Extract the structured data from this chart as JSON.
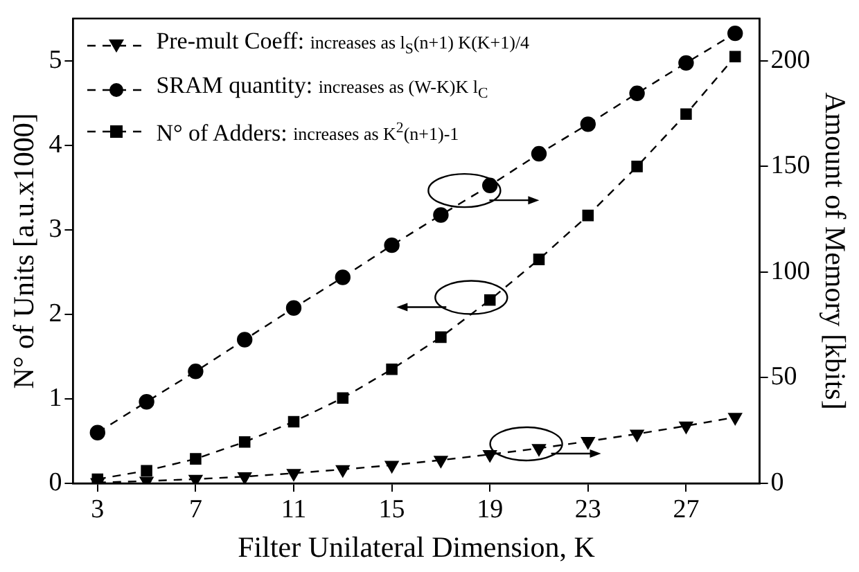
{
  "chart_data": {
    "type": "line",
    "xlabel": "Filter Unilateral Dimension, K",
    "ylabel": "N° of Units [a.u.x1000]",
    "y2label": "Amount of Memory [kbits]",
    "x": [
      3,
      5,
      7,
      9,
      11,
      13,
      15,
      17,
      19,
      21,
      23,
      25,
      27,
      29
    ],
    "xlim": [
      2,
      30
    ],
    "xticks": [
      3,
      7,
      11,
      15,
      19,
      23,
      27
    ],
    "ylim": [
      0,
      5.5
    ],
    "yticks": [
      0,
      1,
      2,
      3,
      4,
      5
    ],
    "y2lim": [
      0,
      220
    ],
    "y2ticks": [
      0,
      50,
      100,
      150,
      200
    ],
    "legend": "top left",
    "grid": false,
    "line_style": "dashed",
    "series": [
      {
        "name": "Pre-mult Coeff: increases as l$_{S}$(n+1) K(K+1)/4",
        "color": "#000000",
        "marker": "triangle",
        "axis": "y2",
        "values": [
          0.4,
          1.1,
          2.0,
          3.2,
          4.8,
          6.6,
          8.6,
          11.0,
          13.7,
          16.6,
          19.9,
          23.4,
          27.2,
          31.3
        ]
      },
      {
        "name": "SRAM quantity: increases as (W-K)K l$_{C}$",
        "color": "#000000",
        "marker": "circle",
        "axis": "y2",
        "values": [
          24,
          38.6,
          53,
          68,
          83,
          97.5,
          112.7,
          127,
          141,
          156,
          170,
          184.6,
          199,
          213
        ]
      },
      {
        "name": "N° of Adders: increases as K$^{2}$(n+1)-1",
        "color": "#000000",
        "marker": "square",
        "axis": "y",
        "values": [
          0.05,
          0.15,
          0.29,
          0.49,
          0.73,
          1.01,
          1.35,
          1.73,
          2.17,
          2.65,
          3.17,
          3.75,
          4.37,
          5.05
        ]
      }
    ]
  }
}
